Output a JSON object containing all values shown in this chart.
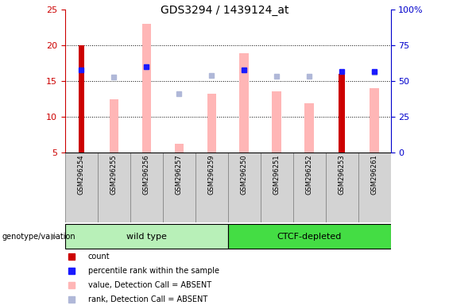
{
  "title": "GDS3294 / 1439124_at",
  "samples": [
    "GSM296254",
    "GSM296255",
    "GSM296256",
    "GSM296257",
    "GSM296259",
    "GSM296250",
    "GSM296251",
    "GSM296252",
    "GSM296253",
    "GSM296261"
  ],
  "count_values": [
    20,
    null,
    null,
    null,
    null,
    null,
    null,
    null,
    16,
    null
  ],
  "percentile_rank": [
    16.5,
    null,
    17.0,
    null,
    null,
    16.5,
    null,
    null,
    16.3,
    16.3
  ],
  "value_absent": [
    null,
    12.4,
    23.0,
    6.2,
    13.2,
    18.9,
    13.5,
    11.9,
    null,
    14.0
  ],
  "rank_absent": [
    null,
    15.5,
    17.0,
    13.2,
    15.8,
    16.5,
    15.6,
    15.6,
    null,
    16.2
  ],
  "ylim": [
    5,
    25
  ],
  "yticks": [
    5,
    10,
    15,
    20,
    25
  ],
  "right_ytick_vals": [
    0,
    25,
    50,
    75,
    100
  ],
  "right_ylabels": [
    "0",
    "25",
    "50",
    "75",
    "100%"
  ],
  "count_color": "#cc0000",
  "rank_color": "#1a1aff",
  "value_absent_color": "#ffb6b6",
  "rank_absent_color": "#b0b8d8",
  "right_axis_color": "#0000cc",
  "left_axis_color": "#cc0000",
  "group_wild_color": "#b8f0b8",
  "group_ctcf_color": "#44dd44",
  "legend_items": [
    {
      "label": "count",
      "color": "#cc0000"
    },
    {
      "label": "percentile rank within the sample",
      "color": "#1a1aff"
    },
    {
      "label": "value, Detection Call = ABSENT",
      "color": "#ffb6b6"
    },
    {
      "label": "rank, Detection Call = ABSENT",
      "color": "#b0b8d8"
    }
  ]
}
